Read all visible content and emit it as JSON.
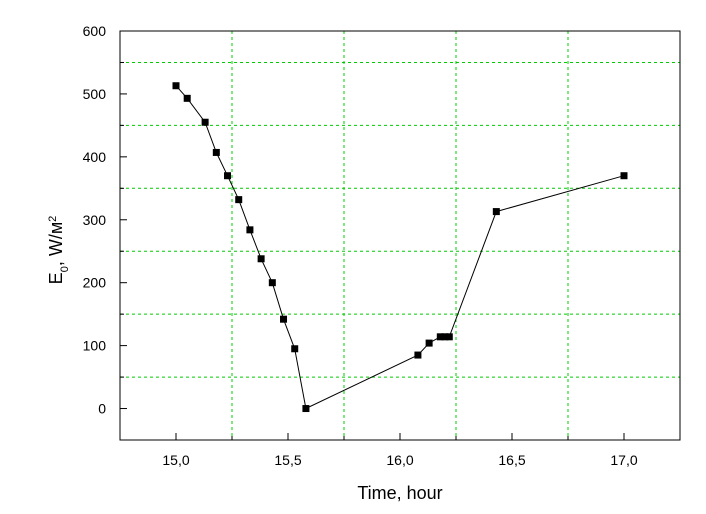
{
  "chart_data": {
    "type": "line",
    "xlabel": "Time, hour",
    "ylabel": {
      "base": "E",
      "sub": "0",
      "rest": ", W/м",
      "sup": "2"
    },
    "xlim": [
      14.75,
      17.25
    ],
    "ylim": [
      -50,
      600
    ],
    "xticks": [
      15.0,
      15.5,
      16.0,
      16.5,
      17.0
    ],
    "xtick_labels": [
      "15,0",
      "15,5",
      "16,0",
      "16,5",
      "17,0"
    ],
    "yticks": [
      0,
      100,
      200,
      300,
      400,
      500,
      600
    ],
    "ytick_labels": [
      "0",
      "100",
      "200",
      "300",
      "400",
      "500",
      "600"
    ],
    "grid": true,
    "grid_color": "#00cc00",
    "line_color": "#000000",
    "marker": "square",
    "series": [
      {
        "x": [
          15.0,
          15.05,
          15.13,
          15.18,
          15.23,
          15.28,
          15.33,
          15.38,
          15.43,
          15.48,
          15.53,
          15.58,
          16.08,
          16.13,
          16.18,
          16.2,
          16.22,
          16.43,
          17.0
        ],
        "y": [
          513,
          493,
          455,
          407,
          370,
          332,
          284,
          238,
          200,
          142,
          95,
          0,
          85,
          104,
          114,
          114,
          114,
          313,
          370
        ]
      }
    ]
  }
}
